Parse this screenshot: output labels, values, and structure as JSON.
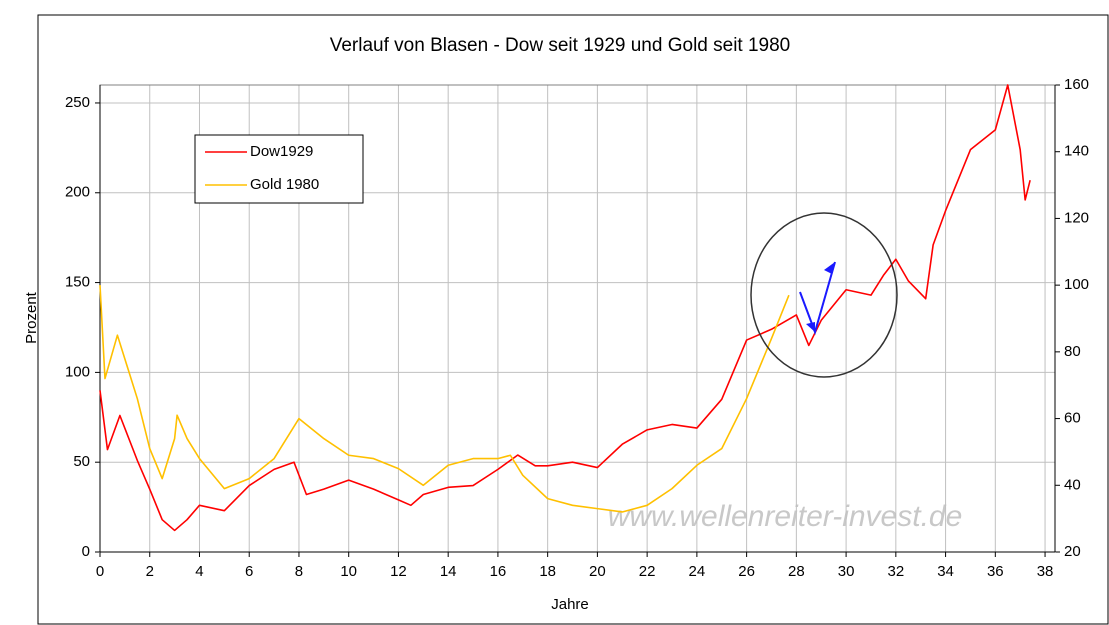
{
  "chart_data": {
    "type": "line",
    "title": "Verlauf von Blasen - Dow seit 1929 und Gold seit 1980",
    "x_label": "Jahre",
    "y_label": "Prozent",
    "watermark": "www.wellenreiter-invest.de",
    "xlim": [
      0,
      38.4
    ],
    "xticks": [
      0,
      2,
      4,
      6,
      8,
      10,
      12,
      14,
      16,
      18,
      20,
      22,
      24,
      26,
      28,
      30,
      32,
      34,
      36,
      38
    ],
    "ylim": [
      0,
      260
    ],
    "yticks": [
      0,
      50,
      100,
      150,
      200,
      250
    ],
    "y2lim": [
      20,
      160
    ],
    "y2ticks": [
      20,
      40,
      60,
      80,
      100,
      120,
      140,
      160
    ],
    "grid": true,
    "legend": "upper left",
    "series": [
      {
        "name": "Dow1929",
        "color": "#ff0000",
        "x": [
          0,
          0.3,
          0.8,
          1.5,
          2,
          2.5,
          3,
          3.5,
          4,
          5,
          6,
          7,
          7.8,
          8.3,
          9,
          10,
          11,
          12,
          12.5,
          13,
          14,
          15,
          16,
          16.8,
          17.5,
          18,
          19,
          20,
          21,
          22,
          23,
          24,
          25,
          26,
          27,
          28,
          28.5,
          29,
          30,
          31,
          31.5,
          32,
          32.5,
          33.2,
          33.5,
          34,
          35,
          36,
          36.5,
          37,
          37.2,
          37.4
        ],
        "values": [
          90,
          57,
          76,
          51,
          35,
          18,
          12,
          18,
          26,
          23,
          37,
          46,
          50,
          32,
          35,
          40,
          35,
          29,
          26,
          32,
          36,
          37,
          46,
          54,
          48,
          48,
          50,
          47,
          60,
          68,
          71,
          69,
          85,
          118,
          124,
          132,
          115,
          129,
          146,
          143,
          154,
          163,
          151,
          141,
          171,
          190,
          224,
          235,
          260,
          224,
          196,
          207
        ]
      },
      {
        "name": "Gold 1980",
        "color": "#ffc000",
        "axis": "y2",
        "x": [
          0,
          0.2,
          0.7,
          1.5,
          2,
          2.5,
          3,
          3.1,
          3.5,
          4,
          5,
          6,
          7,
          8,
          9,
          10,
          11,
          12,
          13,
          14,
          15,
          16,
          16.5,
          17,
          18,
          19,
          20,
          21,
          22,
          23,
          24,
          25,
          26,
          27,
          27.7
        ],
        "values": [
          100,
          72,
          85,
          66,
          51,
          42,
          54,
          61,
          54,
          48,
          39,
          42,
          48,
          60,
          54,
          49,
          48,
          45,
          40,
          46,
          48,
          48,
          49,
          43,
          36,
          34,
          33,
          32,
          34,
          39,
          46,
          51,
          66,
          84,
          97
        ]
      }
    ]
  }
}
